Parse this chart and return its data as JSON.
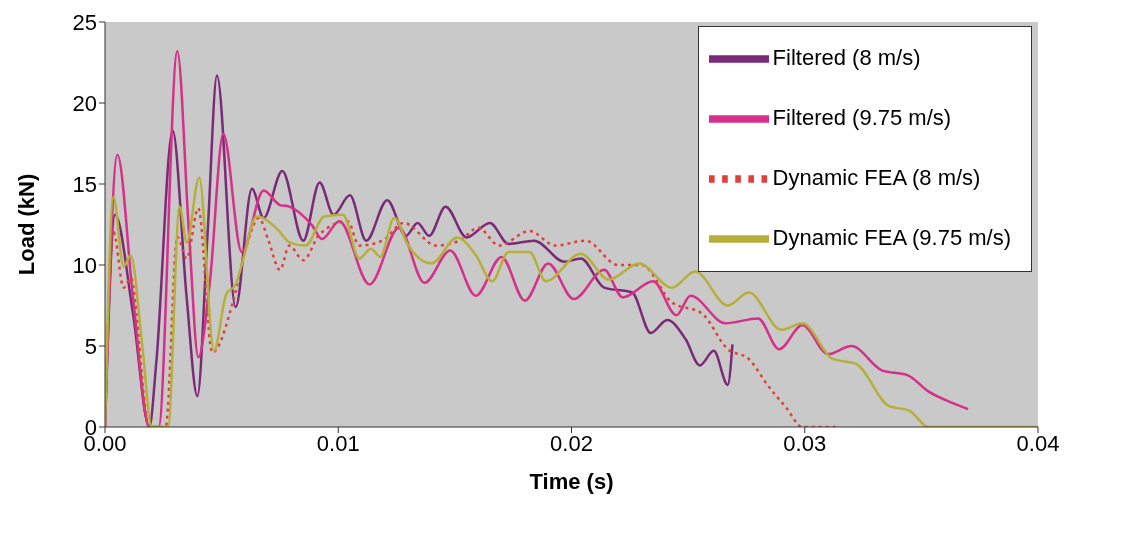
{
  "chart_data": {
    "type": "line",
    "xlabel": "Time (s)",
    "ylabel": "Load (kN)",
    "xlim": [
      0,
      0.04
    ],
    "ylim": [
      0,
      25
    ],
    "xticks": [
      {
        "value": 0,
        "label": "0.00"
      },
      {
        "value": 0.01,
        "label": "0.01"
      },
      {
        "value": 0.02,
        "label": "0.02"
      },
      {
        "value": 0.03,
        "label": "0.03"
      },
      {
        "value": 0.04,
        "label": "0.04"
      }
    ],
    "yticks": [
      0,
      5,
      10,
      15,
      20,
      25
    ],
    "grid": false,
    "legend": "top right",
    "marker": "none",
    "series": [
      {
        "name": "Filtered (8 m/s)",
        "color": "#7b2a78",
        "line_style": "solid",
        "x": [
          0,
          0.00043,
          0.0012,
          0.0019,
          0.0022,
          0.0029,
          0.0035,
          0.00396,
          0.0044,
          0.0048,
          0.0056,
          0.0063,
          0.0068,
          0.0076,
          0.0085,
          0.0092,
          0.0098,
          0.0105,
          0.0112,
          0.0121,
          0.0129,
          0.0134,
          0.0139,
          0.0146,
          0.0155,
          0.0165,
          0.0173,
          0.0184,
          0.0197,
          0.0204,
          0.0214,
          0.0226,
          0.0234,
          0.0241,
          0.0249,
          0.0255,
          0.0261,
          0.0267,
          0.0269
        ],
        "values": [
          0,
          13.1,
          7,
          0,
          4,
          18.3,
          8,
          1.9,
          12,
          21.7,
          7.4,
          14.7,
          12.9,
          15.8,
          11.5,
          15.1,
          13.1,
          14.3,
          11.5,
          14.0,
          11.8,
          12.6,
          11.8,
          13.6,
          11.7,
          12.6,
          11.3,
          11.5,
          10.2,
          10.4,
          8.6,
          8.3,
          5.8,
          6.6,
          5.4,
          3.8,
          4.7,
          2.6,
          5.1
        ]
      },
      {
        "name": "Filtered (9.75 m/s)",
        "color": "#d6308a",
        "line_style": "solid",
        "x": [
          0,
          0.00053,
          0.0012,
          0.0019,
          0.0023,
          0.0031,
          0.0036,
          0.004,
          0.0045,
          0.00507,
          0.00586,
          0.0068,
          0.0075,
          0.0079,
          0.0089,
          0.0093,
          0.01005,
          0.01134,
          0.0126,
          0.0137,
          0.0148,
          0.0159,
          0.017,
          0.018,
          0.019,
          0.0201,
          0.0214,
          0.0222,
          0.0235,
          0.0245,
          0.0251,
          0.0266,
          0.028,
          0.0289,
          0.0299,
          0.031,
          0.032,
          0.0333,
          0.0344,
          0.0353,
          0.0363,
          0.037
        ],
        "values": [
          0,
          16.8,
          8,
          0,
          0,
          23.2,
          12,
          4.3,
          9,
          18.1,
          10.8,
          14.6,
          13.7,
          13.6,
          12.4,
          11.6,
          12.7,
          8.8,
          12.3,
          8.9,
          10.9,
          8.1,
          10.5,
          7.8,
          10.1,
          7.9,
          9.7,
          8.0,
          9.0,
          6.9,
          8.1,
          6.4,
          6.7,
          4.8,
          6.3,
          4.5,
          5.0,
          3.5,
          3.2,
          2.2,
          1.5,
          1.1
        ]
      },
      {
        "name": "Dynamic FEA (8 m/s)",
        "color": "#e0403a",
        "line_style": "dotted",
        "x": [
          0,
          0.00036,
          0.0008,
          0.0011,
          0.0019,
          0.0026,
          0.0031,
          0.0035,
          0.004,
          0.0046,
          0.0055,
          0.00607,
          0.0066,
          0.007,
          0.0075,
          0.0079,
          0.0085,
          0.0092,
          0.0104,
          0.0109,
          0.0119,
          0.0128,
          0.0142,
          0.0152,
          0.016,
          0.0169,
          0.0182,
          0.0193,
          0.0206,
          0.022,
          0.023,
          0.0243,
          0.0256,
          0.0267,
          0.0276,
          0.0284,
          0.0292,
          0.0299,
          0.0315
        ],
        "values": [
          0,
          12.05,
          8.6,
          9.2,
          0,
          0,
          11.75,
          10.4,
          13.5,
          4.6,
          7.8,
          11.2,
          12.9,
          11.55,
          9.7,
          11.2,
          10.3,
          11.9,
          12.7,
          11.2,
          11.5,
          12.6,
          11.2,
          11.5,
          12.3,
          11.2,
          12.1,
          11.2,
          11.5,
          10.0,
          10.0,
          7.7,
          7.0,
          4.8,
          4.2,
          2.6,
          1.2,
          0,
          0
        ]
      },
      {
        "name": "Dynamic FEA (9.75 m/s)",
        "color": "#b5b03a",
        "line_style": "solid",
        "x": [
          0,
          0.00036,
          0.0008,
          0.0011,
          0.0016,
          0.002,
          0.0027,
          0.0032,
          0.0035,
          0.00404,
          0.00467,
          0.0052,
          0.0056,
          0.0059,
          0.0065,
          0.0074,
          0.0079,
          0.0086,
          0.0094,
          0.0102,
          0.0109,
          0.0114,
          0.0118,
          0.0124,
          0.013,
          0.014,
          0.0151,
          0.0159,
          0.0166,
          0.0173,
          0.0182,
          0.0189,
          0.0204,
          0.0216,
          0.0229,
          0.0243,
          0.0253,
          0.0267,
          0.0276,
          0.029,
          0.0299,
          0.0312,
          0.0322,
          0.0336,
          0.0345,
          0.0353,
          0.04
        ],
        "values": [
          0,
          14.2,
          9.9,
          10.6,
          5.0,
          0,
          0,
          13.6,
          11.4,
          15.4,
          4.7,
          8.2,
          8.8,
          10.2,
          13.0,
          12.2,
          11.4,
          11.2,
          13.0,
          13.1,
          10.4,
          11.0,
          10.5,
          12.9,
          11.2,
          10.1,
          11.7,
          10.6,
          9.0,
          10.8,
          10.8,
          9.0,
          10.7,
          9.1,
          10.1,
          8.6,
          9.6,
          7.5,
          8.3,
          6.0,
          6.4,
          4.2,
          3.9,
          1.3,
          1.0,
          0,
          0
        ]
      }
    ]
  }
}
